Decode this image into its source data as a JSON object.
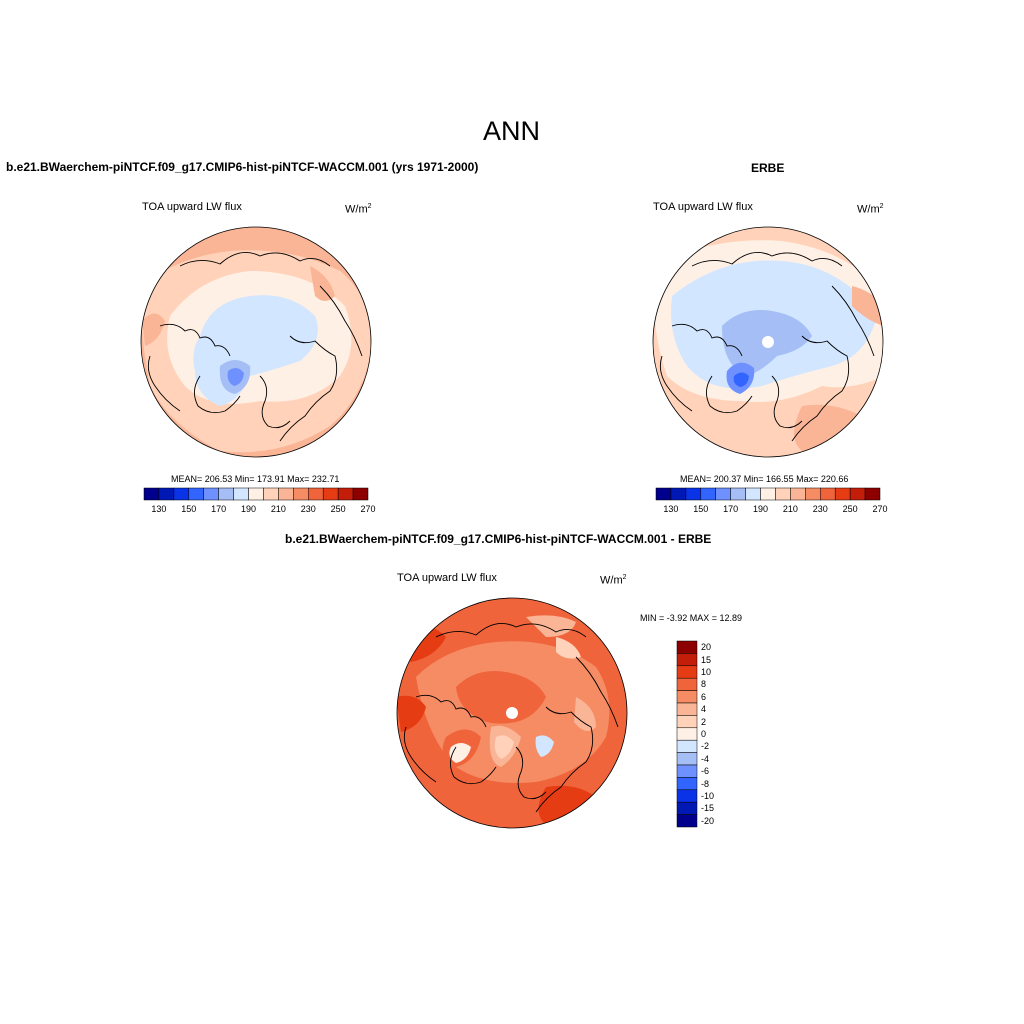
{
  "figure": {
    "title": "ANN",
    "diff_title": "b.e21.BWaerchem-piNTCF.f09_g17.CMIP6-hist-piNTCF-WACCM.001 - ERBE"
  },
  "panels": [
    {
      "case_title": "b.e21.BWaerchem-piNTCF.f09_g17.CMIP6-hist-piNTCF-WACCM.001 (yrs 1971-2000)",
      "variable": "TOA upward LW flux",
      "units_base": "W/m",
      "units_exp": "2",
      "stats_text": "MEAN= 206.53  Min= 173.91  Max= 232.71"
    },
    {
      "case_title": "ERBE",
      "variable": "TOA upward LW flux",
      "units_base": "W/m",
      "units_exp": "2",
      "stats_text": "MEAN= 200.37  Min= 166.55  Max= 220.66"
    },
    {
      "variable": "TOA upward LW flux",
      "units_base": "W/m",
      "units_exp": "2",
      "stats_text": "MIN =  -3.92 MAX =  12.89"
    }
  ],
  "colorbar_abs": {
    "colors": [
      "#00008c",
      "#0019b4",
      "#0a32e6",
      "#3264ff",
      "#6e91ff",
      "#a5bef5",
      "#d2e6ff",
      "#fff0e6",
      "#ffd2b9",
      "#fab496",
      "#f58c64",
      "#f0643c",
      "#e63c14",
      "#c31e0a",
      "#8c0000"
    ],
    "tick_labels": [
      "130",
      "150",
      "170",
      "190",
      "210",
      "230",
      "250",
      "270"
    ]
  },
  "colorbar_diff": {
    "colors": [
      "#8c0000",
      "#c31e0a",
      "#e63c14",
      "#f0643c",
      "#f58c64",
      "#fab496",
      "#ffd2b9",
      "#fff0e6",
      "#d2e6ff",
      "#a5bef5",
      "#6e91ff",
      "#3264ff",
      "#0a32e6",
      "#0019b4",
      "#00008c"
    ],
    "tick_labels": [
      "20",
      "15",
      "10",
      "8",
      "6",
      "4",
      "2",
      "0",
      "-2",
      "-4",
      "-6",
      "-8",
      "-10",
      "-15",
      "-20"
    ]
  }
}
